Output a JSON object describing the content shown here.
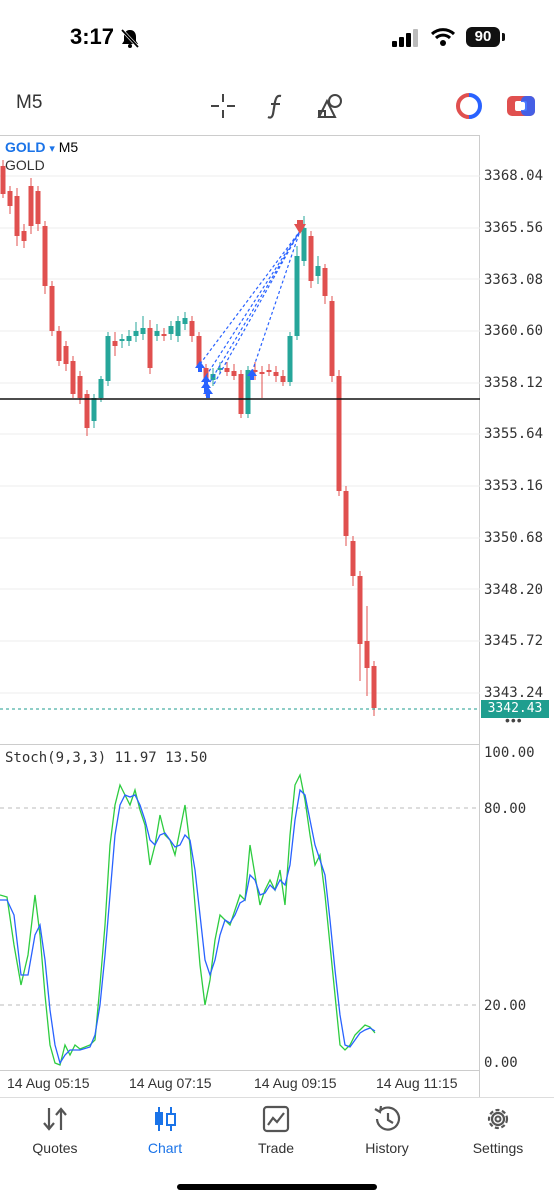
{
  "status": {
    "time": "3:17",
    "battery": "90"
  },
  "toolbar": {
    "timeframe": "M5"
  },
  "chart": {
    "symbol": "GOLD",
    "symbol_arrow": "▾",
    "symbol_timeframe": "M5",
    "symbol_desc": "GOLD",
    "price_labels": [
      "3368.04",
      "3365.56",
      "3363.08",
      "3360.60",
      "3358.12",
      "3355.64",
      "3353.16",
      "3350.68",
      "3348.20",
      "3345.72",
      "3343.24"
    ],
    "current_price": "3342.43",
    "more": "•••",
    "stoch_label": "Stoch(9,3,3) 11.97 13.50",
    "stoch_axis": [
      "100.00",
      "80.00",
      "20.00",
      "0.00"
    ],
    "time_labels": [
      "14 Aug 05:15",
      "14 Aug 07:15",
      "14 Aug 09:15",
      "14 Aug 11:15"
    ],
    "colors": {
      "bull": "#26a69a",
      "bear": "#e0504f",
      "main": "#2962ff",
      "signal": "#2ecc40",
      "current": "#1f9e8f"
    }
  },
  "tabs": [
    {
      "label": "Quotes",
      "icon": "quotes-icon"
    },
    {
      "label": "Chart",
      "icon": "chart-icon",
      "active": true
    },
    {
      "label": "Trade",
      "icon": "trade-icon"
    },
    {
      "label": "History",
      "icon": "history-icon"
    },
    {
      "label": "Settings",
      "icon": "settings-icon"
    }
  ]
}
